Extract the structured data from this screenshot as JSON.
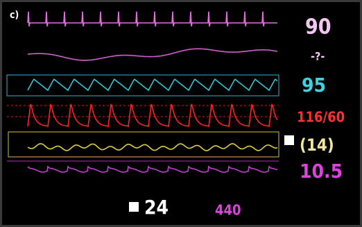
{
  "panel_label": "c)",
  "readings": [
    "90",
    "-?-",
    "95",
    "116/60",
    "(14)",
    "10.5"
  ],
  "bottom": [
    "24",
    "440"
  ]
}
